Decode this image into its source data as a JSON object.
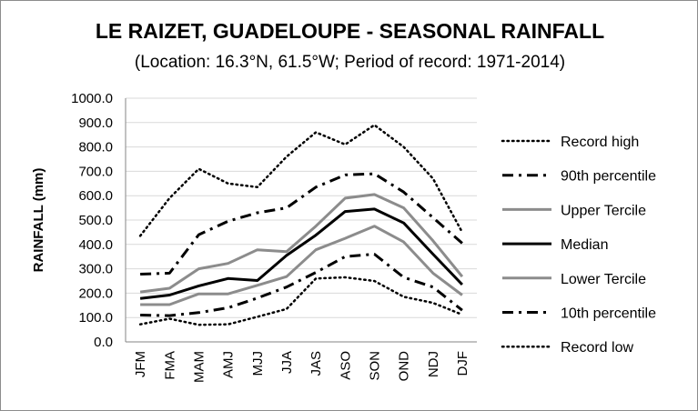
{
  "chart_data": {
    "type": "line",
    "title": "LE RAIZET, GUADELOUPE - SEASONAL RAINFALL",
    "subtitle": "(Location: 16.3°N, 61.5°W; Period of record: 1971-2014)",
    "ylabel": "RAINFALL (mm)",
    "xlabel": "",
    "ylim": [
      0,
      1000
    ],
    "yticks": [
      "0.0",
      "100.0",
      "200.0",
      "300.0",
      "400.0",
      "500.0",
      "600.0",
      "700.0",
      "800.0",
      "900.0",
      "1000.0"
    ],
    "grid": true,
    "legend": "right",
    "categories": [
      "JFM",
      "FMA",
      "MAM",
      "AMJ",
      "MJJ",
      "JJA",
      "JAS",
      "ASO",
      "SON",
      "OND",
      "NDJ",
      "DJF"
    ],
    "series": [
      {
        "name": "Record high",
        "style": "dotted",
        "color": "#000000",
        "values": [
          435,
          590,
          710,
          650,
          635,
          760,
          860,
          810,
          890,
          800,
          670,
          450
        ]
      },
      {
        "name": "90th percentile",
        "style": "dashdot",
        "color": "#000000",
        "values": [
          278,
          282,
          440,
          495,
          530,
          550,
          635,
          685,
          690,
          615,
          510,
          405
        ]
      },
      {
        "name": "Upper Tercile",
        "style": "solid",
        "color": "#8c8c8c",
        "values": [
          205,
          220,
          300,
          322,
          378,
          370,
          475,
          590,
          605,
          550,
          415,
          268
        ]
      },
      {
        "name": "Median",
        "style": "solid",
        "color": "#000000",
        "values": [
          178,
          192,
          230,
          260,
          252,
          355,
          438,
          535,
          545,
          488,
          360,
          235
        ]
      },
      {
        "name": "Lower Tercile",
        "style": "solid",
        "color": "#8c8c8c",
        "values": [
          153,
          153,
          197,
          197,
          232,
          268,
          378,
          425,
          475,
          410,
          282,
          192
        ]
      },
      {
        "name": "10th percentile",
        "style": "dashdot",
        "color": "#000000",
        "values": [
          110,
          108,
          120,
          140,
          180,
          225,
          285,
          350,
          360,
          265,
          225,
          130
        ]
      },
      {
        "name": "Record low",
        "style": "dotted",
        "color": "#000000",
        "values": [
          72,
          95,
          70,
          72,
          103,
          135,
          260,
          265,
          250,
          185,
          160,
          112
        ]
      }
    ]
  }
}
